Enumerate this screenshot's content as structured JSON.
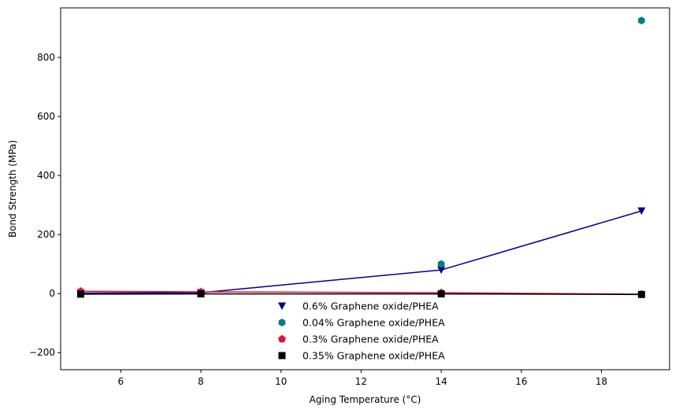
{
  "chart_data": {
    "type": "scatter",
    "xlabel": "Aging Temperature (°C)",
    "ylabel": "Bond Strength (MPa)",
    "xlim": [
      4.5,
      19.7
    ],
    "ylim": [
      -258,
      968
    ],
    "xticks": [
      6,
      8,
      10,
      12,
      14,
      16,
      18
    ],
    "yticks": [
      -200,
      0,
      200,
      400,
      600,
      800
    ],
    "grid": false,
    "legend_position": "lower-center",
    "series": [
      {
        "name": "0.6% Graphene oxide/PHEA",
        "color": "#00008b",
        "marker": "triangle-down",
        "connected": true,
        "x": [
          5,
          8,
          14,
          19
        ],
        "y": [
          2,
          3,
          80,
          280
        ]
      },
      {
        "name": "0.04% Graphene oxide/PHEA",
        "color": "#008080",
        "marker": "hexagon",
        "connected": false,
        "x": [
          5,
          8,
          14,
          19
        ],
        "y": [
          1,
          4,
          100,
          925
        ]
      },
      {
        "name": "0.3% Graphene oxide/PHEA",
        "color": "#dc143c",
        "marker": "pentagon",
        "connected": true,
        "x": [
          5,
          8,
          14,
          19
        ],
        "y": [
          8,
          6,
          3,
          -2
        ]
      },
      {
        "name": "0.35% Graphene oxide/PHEA",
        "color": "#000000",
        "marker": "square",
        "connected": true,
        "x": [
          5,
          8,
          14,
          19
        ],
        "y": [
          -2,
          -1,
          -1,
          -3
        ]
      }
    ]
  }
}
